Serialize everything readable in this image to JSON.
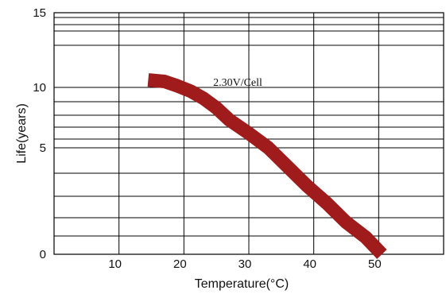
{
  "chart_data": {
    "type": "line",
    "xlabel": "Temperature(°C)",
    "ylabel": "Life(years)",
    "xlim": [
      0,
      60
    ],
    "x_ticks": [
      10,
      20,
      30,
      40,
      50
    ],
    "y_ticks": [
      0,
      5,
      10,
      15
    ],
    "grid": true,
    "colors": {
      "series": "#a01c1c",
      "grid": "#000000"
    },
    "annotation": {
      "text": "2.30V/Cell",
      "x": 24.5,
      "y": 10.1
    },
    "series": [
      {
        "x": [
          14.5,
          17,
          19,
          21,
          23,
          25,
          27,
          30,
          33,
          36,
          39,
          42,
          45,
          48,
          50.5
        ],
        "y": [
          10.5,
          10.4,
          10.1,
          9.7,
          9.1,
          8.3,
          7.3,
          6.2,
          5.0,
          4.1,
          3.2,
          2.4,
          1.5,
          0.8,
          0.0
        ]
      }
    ]
  }
}
